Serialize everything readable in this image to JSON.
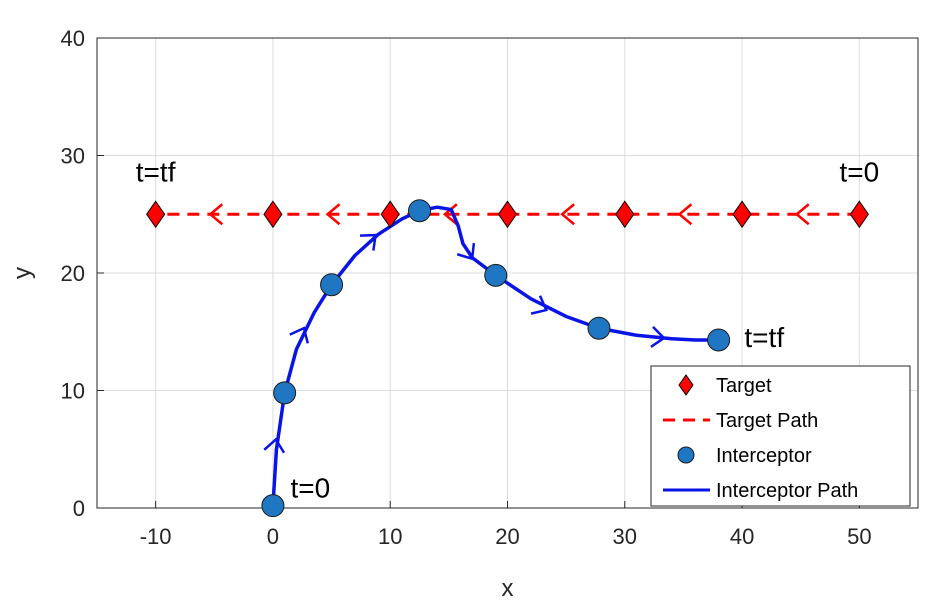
{
  "chart_data": {
    "type": "line",
    "xlabel": "x",
    "ylabel": "y",
    "xlim": [
      -15,
      55
    ],
    "ylim": [
      0,
      40
    ],
    "xticks": [
      -10,
      0,
      10,
      20,
      30,
      40,
      50
    ],
    "yticks": [
      0,
      10,
      20,
      30,
      40
    ],
    "grid": true,
    "legend_position": "bottom-right",
    "colors": {
      "target": "#ff0000",
      "target_path": "#ff0000",
      "interceptor": "#1f77c4",
      "interceptor_path": "#0a14e6"
    },
    "series": [
      {
        "name": "Target",
        "kind": "markers",
        "marker": "diamond",
        "x": [
          -10,
          0,
          10,
          20,
          30,
          40,
          50
        ],
        "y": [
          25,
          25,
          25,
          25,
          25,
          25,
          25
        ]
      },
      {
        "name": "Target Path",
        "kind": "dashed-line",
        "x": [
          50,
          -10
        ],
        "y": [
          25,
          25
        ]
      },
      {
        "name": "Interceptor",
        "kind": "markers",
        "marker": "circle",
        "x": [
          0,
          1,
          5,
          12.5,
          19,
          27.8,
          38
        ],
        "y": [
          0.2,
          9.8,
          19,
          25.3,
          19.8,
          15.3,
          14.3
        ]
      },
      {
        "name": "Interceptor Path",
        "kind": "solid-line",
        "x": [
          0,
          0.3,
          1,
          2,
          3.5,
          5,
          7,
          9,
          11,
          12.5,
          14,
          15.2,
          15.8,
          16.2,
          17,
          19,
          22,
          25,
          27.8,
          31,
          34,
          36,
          38
        ],
        "y": [
          0.2,
          5,
          9.8,
          13.5,
          16.6,
          19,
          21.5,
          23.3,
          24.6,
          25.3,
          25.6,
          25.4,
          24,
          22.5,
          21.3,
          19.8,
          17.8,
          16.3,
          15.3,
          14.7,
          14.4,
          14.3,
          14.3
        ]
      }
    ],
    "target_arrows_x": [
      45,
      35,
      25,
      15,
      5,
      -5
    ],
    "interceptor_arrows": [
      {
        "x": 0.2,
        "y": 5.5
      },
      {
        "x": 2.5,
        "y": 15
      },
      {
        "x": 8.5,
        "y": 23
      },
      {
        "x": 16.8,
        "y": 21.5
      },
      {
        "x": 23,
        "y": 17
      },
      {
        "x": 33,
        "y": 14.5
      }
    ],
    "annotations": [
      {
        "text": "t=tf",
        "x": -10,
        "y": 27.8,
        "anchor": "middle"
      },
      {
        "text": "t=0",
        "x": 50,
        "y": 27.8,
        "anchor": "middle"
      },
      {
        "text": "t=tf",
        "x": 40.2,
        "y": 13.7,
        "anchor": "start"
      },
      {
        "text": "t=0",
        "x": 1.5,
        "y": 0.9,
        "anchor": "start"
      }
    ]
  }
}
